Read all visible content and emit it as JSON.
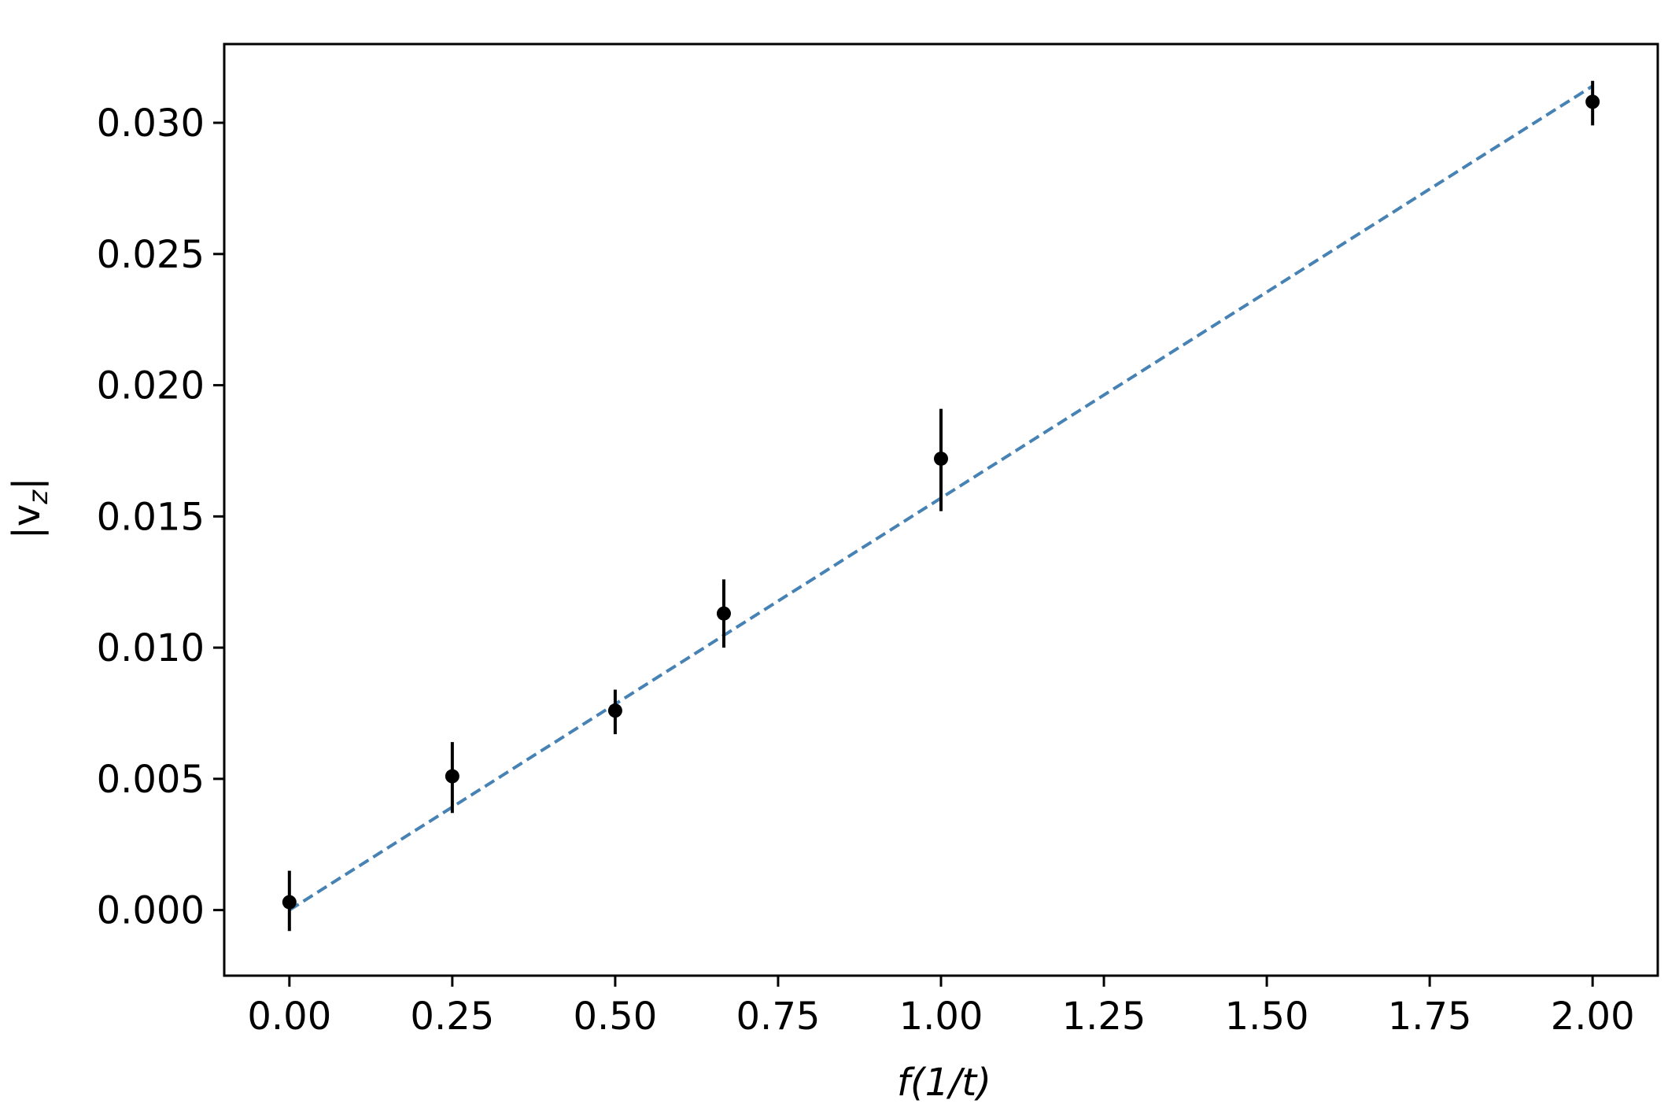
{
  "chart_data": {
    "type": "scatter",
    "title": "",
    "xlabel": "f(1/t)",
    "ylabel": "|v_z|",
    "xlim": [
      -0.1,
      2.1
    ],
    "ylim": [
      -0.0025,
      0.033
    ],
    "x_ticks": [
      0.0,
      0.25,
      0.5,
      0.75,
      1.0,
      1.25,
      1.5,
      1.75,
      2.0
    ],
    "x_tick_labels": [
      "0.00",
      "0.25",
      "0.50",
      "0.75",
      "1.00",
      "1.25",
      "1.50",
      "1.75",
      "2.00"
    ],
    "y_ticks": [
      0.0,
      0.005,
      0.01,
      0.015,
      0.02,
      0.025,
      0.03
    ],
    "y_tick_labels": [
      "0.000",
      "0.005",
      "0.010",
      "0.015",
      "0.020",
      "0.025",
      "0.030"
    ],
    "grid": false,
    "series": [
      {
        "type": "errorbar",
        "color": "#000000",
        "points": [
          {
            "x": 0.0,
            "y": 0.0003,
            "y_low": -0.0008,
            "y_high": 0.0015
          },
          {
            "x": 0.25,
            "y": 0.0051,
            "y_low": 0.0037,
            "y_high": 0.0064
          },
          {
            "x": 0.5,
            "y": 0.0076,
            "y_low": 0.0067,
            "y_high": 0.0084
          },
          {
            "x": 0.6667,
            "y": 0.0113,
            "y_low": 0.01,
            "y_high": 0.0126
          },
          {
            "x": 1.0,
            "y": 0.0172,
            "y_low": 0.0152,
            "y_high": 0.0191
          },
          {
            "x": 2.0,
            "y": 0.0308,
            "y_low": 0.0299,
            "y_high": 0.0316
          }
        ]
      },
      {
        "type": "line",
        "style": "dashed",
        "color": "#4682b4",
        "x": [
          0.0,
          2.0
        ],
        "y": [
          0.0,
          0.0314
        ]
      }
    ]
  }
}
